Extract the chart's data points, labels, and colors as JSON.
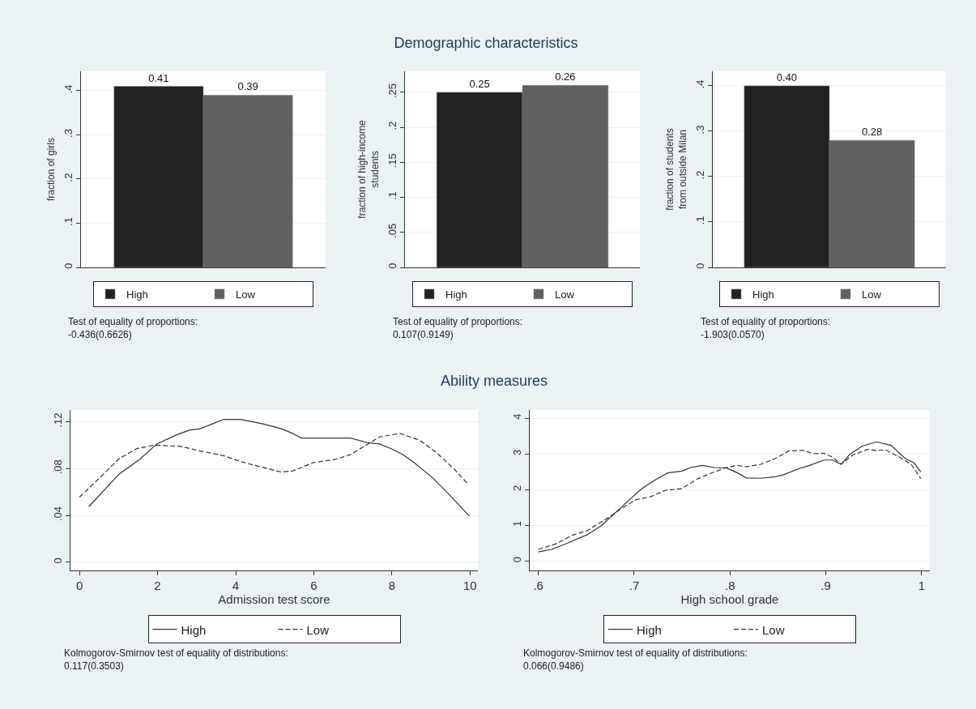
{
  "chart_data": [
    {
      "type": "bar",
      "ylabel": "fraction of girls",
      "categories": [
        null
      ],
      "ylim": [
        0,
        0.444
      ],
      "yticks": [
        0,
        {
          "value": 0.1,
          "label": ".1"
        },
        {
          "value": 0.2,
          "label": ".2"
        },
        {
          "value": 0.3,
          "label": ".3"
        },
        {
          "value": 0.4,
          "label": ".4"
        }
      ],
      "grid": "y",
      "legend": "bottom",
      "annotations": [
        "Test of equality of proportions:\n-0.436(0.6626)"
      ],
      "series": [
        {
          "name": "High",
          "color": "#222222",
          "values": [
            0.41
          ],
          "value_labels": [
            "0.41"
          ]
        },
        {
          "name": "Low",
          "color": "#606060",
          "values": [
            0.39
          ],
          "value_labels": [
            "0.39"
          ]
        }
      ]
    },
    {
      "type": "bar",
      "title": "Demographic characteristics",
      "ylabel": "fraction of high-income\nstudents",
      "categories": [
        null
      ],
      "ylim": [
        0,
        0.28
      ],
      "yticks": [
        0,
        {
          "value": 0.05,
          "label": ".05"
        },
        {
          "value": 0.1,
          "label": ".1"
        },
        {
          "value": 0.15,
          "label": ".15"
        },
        {
          "value": 0.2,
          "label": ".2"
        },
        {
          "value": 0.25,
          "label": ".25"
        }
      ],
      "grid": "y",
      "legend": "bottom",
      "annotations": [
        "Test of equality of proportions:\n0.107(0.9149)"
      ],
      "series": [
        {
          "name": "High",
          "color": "#222222",
          "values": [
            0.25
          ],
          "value_labels": [
            "0.25"
          ]
        },
        {
          "name": "Low",
          "color": "#606060",
          "values": [
            0.26
          ],
          "value_labels": [
            "0.26"
          ]
        }
      ]
    },
    {
      "type": "bar",
      "ylabel": "fraction of students\nfrom outside Milan",
      "categories": [
        null
      ],
      "ylim": [
        0,
        0.432
      ],
      "yticks": [
        0,
        {
          "value": 0.1,
          "label": ".1"
        },
        {
          "value": 0.2,
          "label": ".2"
        },
        {
          "value": 0.3,
          "label": ".3"
        },
        {
          "value": 0.4,
          "label": ".4"
        }
      ],
      "grid": "y",
      "legend": "bottom",
      "annotations": [
        "Test of equality of proportions:\n-1.903(0.0570)"
      ],
      "series": [
        {
          "name": "High",
          "color": "#222222",
          "values": [
            0.4
          ],
          "value_labels": [
            "0.40"
          ]
        },
        {
          "name": "Low",
          "color": "#606060",
          "values": [
            0.28
          ],
          "value_labels": [
            "0.28"
          ]
        }
      ]
    },
    {
      "type": "line",
      "title": "Ability measures",
      "xlabel": "Admission test score",
      "xlim": [
        -0.23,
        10.2
      ],
      "xticks": [
        0,
        2,
        4,
        6,
        8,
        10
      ],
      "ylim": [
        -0.007,
        0.13
      ],
      "yticks": [
        0,
        {
          "value": 0.04,
          "label": ".04"
        },
        {
          "value": 0.08,
          "label": ".08"
        },
        {
          "value": 0.12,
          "label": ".12"
        }
      ],
      "grid": "y",
      "legend": "bottom",
      "marker": "none",
      "annotations": [
        "Kolmogorov-Smirnov test of equality of distributions:\n0.117(0.3503)"
      ],
      "series": [
        {
          "name": "High",
          "color": "#333333",
          "line_style": "solid",
          "x": [
            0.24,
            1.02,
            1.54,
            1.98,
            2.5,
            2.83,
            3.09,
            3.39,
            3.69,
            4.13,
            4.72,
            5.17,
            5.46,
            5.68,
            5.98,
            6.42,
            6.94,
            7.39,
            7.68,
            7.98,
            8.28,
            8.57,
            9.01,
            9.46,
            9.98
          ],
          "values": [
            0.0475,
            0.0754,
            0.0878,
            0.101,
            0.109,
            0.113,
            0.114,
            0.118,
            0.122,
            0.122,
            0.118,
            0.114,
            0.11,
            0.106,
            0.106,
            0.106,
            0.106,
            0.102,
            0.101,
            0.097,
            0.092,
            0.085,
            0.073,
            0.058,
            0.0395
          ]
        },
        {
          "name": "Low",
          "color": "#333333",
          "line_style": "dashed",
          "x": [
            0,
            0.58,
            1.02,
            1.47,
            1.91,
            2.58,
            3.09,
            3.69,
            4.13,
            4.57,
            5.17,
            5.46,
            5.98,
            6.57,
            6.94,
            7.39,
            7.68,
            8.2,
            8.72,
            9.16,
            9.61,
            9.94
          ],
          "values": [
            0.0556,
            0.074,
            0.0886,
            0.097,
            0.1,
            0.099,
            0.095,
            0.091,
            0.086,
            0.082,
            0.077,
            0.078,
            0.085,
            0.088,
            0.092,
            0.101,
            0.107,
            0.11,
            0.104,
            0.093,
            0.079,
            0.067
          ]
        }
      ]
    },
    {
      "type": "line",
      "xlabel": "High school grade",
      "xlim": [
        0.591,
        1.0085
      ],
      "xticks": [
        {
          "value": 0.6,
          "label": ".6"
        },
        {
          "value": 0.7,
          "label": ".7"
        },
        {
          "value": 0.8,
          "label": ".8"
        },
        {
          "value": 0.9,
          "label": ".9"
        },
        1
      ],
      "ylim": [
        -0.26,
        4.23
      ],
      "yticks": [
        0,
        1,
        2,
        3,
        4
      ],
      "grid": "y",
      "legend": "bottom",
      "marker": "none",
      "annotations": [
        "Kolmogorov-Smirnov test of equality of distributions:\n0.066(0.9486)"
      ],
      "series": [
        {
          "name": "High",
          "color": "#333333",
          "line_style": "solid",
          "x": [
            0.6,
            0.614,
            0.63,
            0.651,
            0.666,
            0.681,
            0.693,
            0.708,
            0.723,
            0.735,
            0.75,
            0.759,
            0.771,
            0.784,
            0.796,
            0.808,
            0.817,
            0.832,
            0.847,
            0.856,
            0.871,
            0.883,
            0.898,
            0.907,
            0.916,
            0.925,
            0.938,
            0.953,
            0.968,
            0.983,
            0.992,
            0.999
          ],
          "values": [
            0.26,
            0.33,
            0.5,
            0.74,
            1.0,
            1.37,
            1.67,
            2.03,
            2.29,
            2.47,
            2.52,
            2.62,
            2.68,
            2.62,
            2.61,
            2.47,
            2.33,
            2.32,
            2.36,
            2.42,
            2.58,
            2.68,
            2.83,
            2.83,
            2.71,
            2.99,
            3.22,
            3.34,
            3.24,
            2.87,
            2.75,
            2.5
          ]
        },
        {
          "name": "Low",
          "color": "#333333",
          "line_style": "dashed",
          "x": [
            0.6,
            0.618,
            0.636,
            0.651,
            0.66,
            0.672,
            0.687,
            0.702,
            0.717,
            0.732,
            0.75,
            0.765,
            0.78,
            0.796,
            0.808,
            0.817,
            0.832,
            0.847,
            0.862,
            0.877,
            0.886,
            0.898,
            0.907,
            0.916,
            0.928,
            0.944,
            0.953,
            0.962,
            0.977,
            0.989,
            0.999
          ],
          "values": [
            0.33,
            0.48,
            0.73,
            0.85,
            1.01,
            1.2,
            1.48,
            1.72,
            1.8,
            1.98,
            2.03,
            2.29,
            2.46,
            2.62,
            2.68,
            2.64,
            2.71,
            2.87,
            3.09,
            3.1,
            3.01,
            3.02,
            2.91,
            2.71,
            2.97,
            3.13,
            3.09,
            3.12,
            2.91,
            2.71,
            2.31
          ]
        }
      ]
    }
  ]
}
